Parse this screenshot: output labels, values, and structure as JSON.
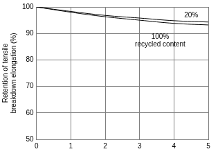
{
  "chart_data": {
    "type": "line",
    "y_label": "Retention of tensile\nbreakdown elongation (%)",
    "x": [
      0,
      1,
      2,
      3,
      4,
      5
    ],
    "series": [
      {
        "name": "20%",
        "color": "#000000",
        "values": [
          100,
          98.3,
          96.8,
          95.8,
          94.8,
          94.3
        ],
        "label_at": [
          4.5,
          98.2
        ]
      },
      {
        "name": "100%\nrecycled content",
        "color": "#000000",
        "values": [
          100,
          98,
          96.3,
          95,
          93.8,
          93.2
        ],
        "label_at": [
          3.6,
          90
        ]
      }
    ],
    "xlim": [
      0,
      5
    ],
    "xticks": [
      0,
      1,
      2,
      3,
      4,
      5
    ],
    "ylim": [
      50,
      100
    ],
    "yticks": [
      50,
      60,
      70,
      80,
      90,
      100
    ],
    "grid": true
  }
}
